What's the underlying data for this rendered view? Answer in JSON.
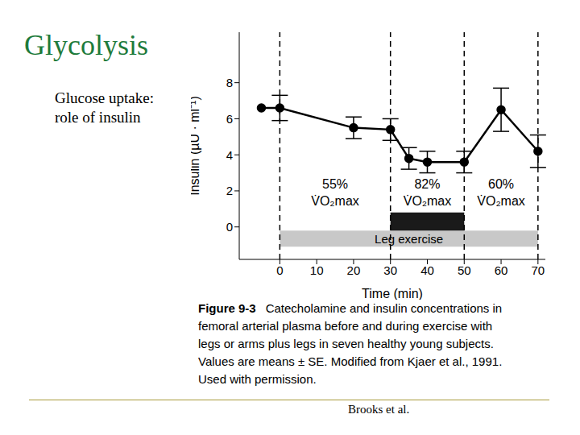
{
  "slide": {
    "title": "Glycolysis",
    "subtitle": "Glucose uptake: role of insulin",
    "figure_label": "Figure 9-3",
    "caption_lines": [
      "Catecholamine and insulin concentrations in",
      "femoral arterial plasma before and during exercise with",
      "legs or arms plus legs in seven healthy young subjects.",
      "Values are means ± SE. Modified from Kjaer et al., 1991.",
      "Used with permission."
    ],
    "credit": "Brooks et al."
  },
  "chart_data": {
    "type": "line",
    "x_label": "Time (min)",
    "y_label": "Insulin (µU · ml⁻¹)",
    "x": [
      -5,
      0,
      20,
      30,
      35,
      40,
      50,
      60,
      70
    ],
    "values": [
      6.6,
      6.6,
      5.5,
      5.4,
      3.8,
      3.6,
      3.6,
      6.5,
      4.2
    ],
    "errors": [
      null,
      0.7,
      0.6,
      0.6,
      0.6,
      0.6,
      0.6,
      1.2,
      0.9
    ],
    "color": "#000000",
    "marker": "circle",
    "xlim": [
      -11,
      72
    ],
    "xticks": [
      0,
      10,
      20,
      30,
      40,
      50,
      60,
      70
    ],
    "ylim": [
      -1.8,
      10.8
    ],
    "yticks": [
      0,
      2,
      4,
      6,
      8
    ],
    "grid": false,
    "phases": [
      {
        "start": 0,
        "end": 30,
        "label": [
          "55%",
          "V̇O₂max"
        ]
      },
      {
        "start": 30,
        "end": 50,
        "label": [
          "82%",
          "V̇O₂max"
        ]
      },
      {
        "start": 50,
        "end": 70,
        "label": [
          "60%",
          "V̇O₂max"
        ]
      }
    ],
    "bands": [
      {
        "label": "Leg exercise",
        "start": 0,
        "end": 70,
        "color": "#c8c8c8"
      },
      {
        "start": 30,
        "end": 50,
        "color": "#1a1a1a"
      }
    ]
  }
}
